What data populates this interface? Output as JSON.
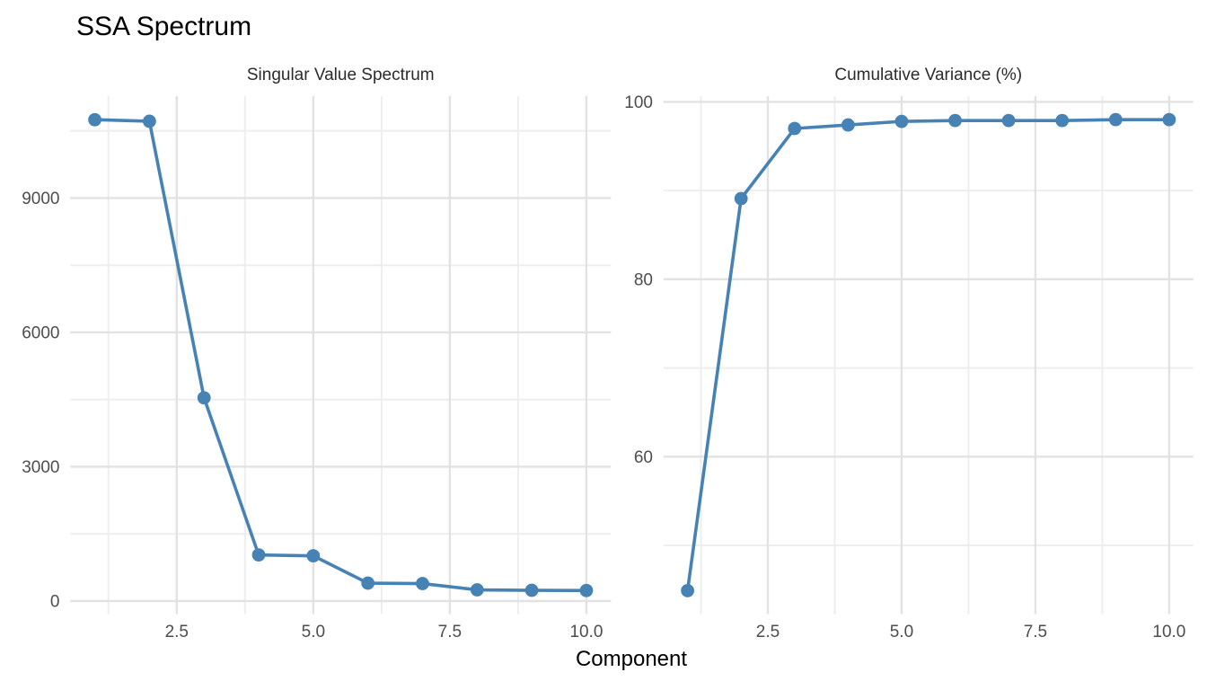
{
  "figure": {
    "title": "SSA Spectrum",
    "xlabel": "Component",
    "background": "#FFFFFF"
  },
  "colors": {
    "series": "#4682B4",
    "grid_major": "#E2E2E2",
    "grid_minor": "#EEEEEE",
    "tick_label_text": "#4D4D4D",
    "panel_title_text": "#2B2B2B",
    "title_text": "#000000"
  },
  "chart_data": [
    {
      "type": "line",
      "title": "Singular Value Spectrum",
      "x": [
        1,
        2,
        3,
        4,
        5,
        6,
        7,
        8,
        9,
        10
      ],
      "values": [
        10750,
        10715,
        4540,
        1030,
        1010,
        400,
        390,
        250,
        240,
        235
      ],
      "xlabel": "Component",
      "ylabel": "",
      "xlim": [
        0.55,
        10.45
      ],
      "ylim": [
        -291,
        11276
      ],
      "x_ticks": [
        {
          "value": 2.5,
          "label": "2.5"
        },
        {
          "value": 5.0,
          "label": "5.0"
        },
        {
          "value": 7.5,
          "label": "7.5"
        },
        {
          "value": 10.0,
          "label": "10.0"
        }
      ],
      "y_ticks": [
        {
          "value": 0,
          "label": "0"
        },
        {
          "value": 3000,
          "label": "3000"
        },
        {
          "value": 6000,
          "label": "6000"
        },
        {
          "value": 9000,
          "label": "9000"
        }
      ],
      "x_minor": [
        1.25,
        3.75,
        6.25,
        8.75
      ],
      "y_minor": [
        1500,
        4500,
        7500,
        10500
      ],
      "grid": "on",
      "legend": "none",
      "marker": "filled-circle"
    },
    {
      "type": "line",
      "title": "Cumulative Variance (%)",
      "x": [
        1,
        2,
        3,
        4,
        5,
        6,
        7,
        8,
        9,
        10
      ],
      "values": [
        44.9,
        89.1,
        97.0,
        97.4,
        97.8,
        97.9,
        97.9,
        97.9,
        98.0,
        98.0
      ],
      "xlabel": "Component",
      "ylabel": "",
      "xlim": [
        0.55,
        10.45
      ],
      "ylim": [
        42.25,
        100.65
      ],
      "x_ticks": [
        {
          "value": 2.5,
          "label": "2.5"
        },
        {
          "value": 5.0,
          "label": "5.0"
        },
        {
          "value": 7.5,
          "label": "7.5"
        },
        {
          "value": 10.0,
          "label": "10.0"
        }
      ],
      "y_ticks": [
        {
          "value": 60,
          "label": "60"
        },
        {
          "value": 80,
          "label": "80"
        },
        {
          "value": 100,
          "label": "100"
        }
      ],
      "x_minor": [
        1.25,
        3.75,
        6.25,
        8.75
      ],
      "y_minor": [
        50,
        70,
        90
      ],
      "grid": "on",
      "legend": "none",
      "marker": "filled-circle"
    }
  ]
}
